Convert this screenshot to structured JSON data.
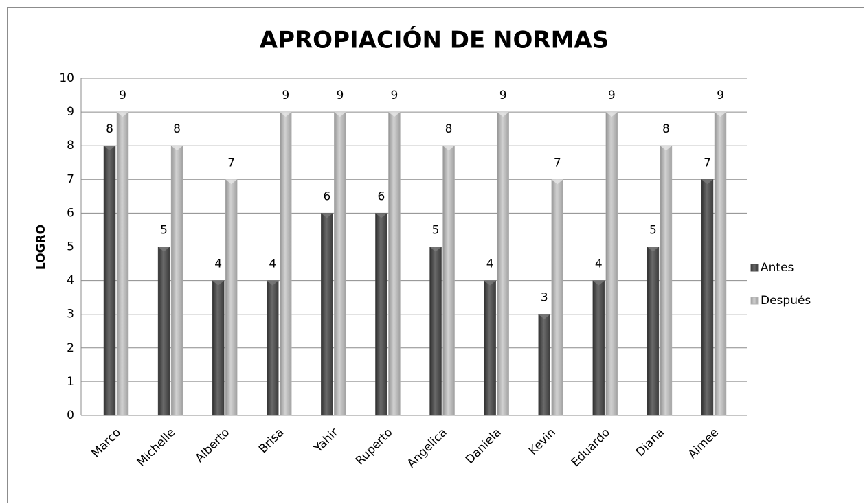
{
  "chart_data": {
    "type": "bar",
    "title": "APROPIACIÓN DE NORMAS",
    "y_label": "LOGRO",
    "categories": [
      "Marco",
      "Michelle",
      "Alberto",
      "Brisa",
      "Yahir",
      "Ruperto",
      "Angelica",
      "Daniela",
      "Kevin",
      "Eduardo",
      "Diana",
      "Aimee"
    ],
    "series": [
      {
        "name": "Antes",
        "color": "#4d4d4d",
        "values": [
          8,
          5,
          4,
          4,
          6,
          6,
          5,
          4,
          3,
          4,
          5,
          7
        ]
      },
      {
        "name": "Después",
        "color": "#b3b3b3",
        "values": [
          9,
          8,
          7,
          9,
          9,
          9,
          8,
          9,
          7,
          9,
          8,
          9
        ]
      }
    ],
    "ylim": [
      0,
      10
    ],
    "yticks": [
      0,
      1,
      2,
      3,
      4,
      5,
      6,
      7,
      8,
      9,
      10
    ],
    "grid": true,
    "legend": "right"
  }
}
